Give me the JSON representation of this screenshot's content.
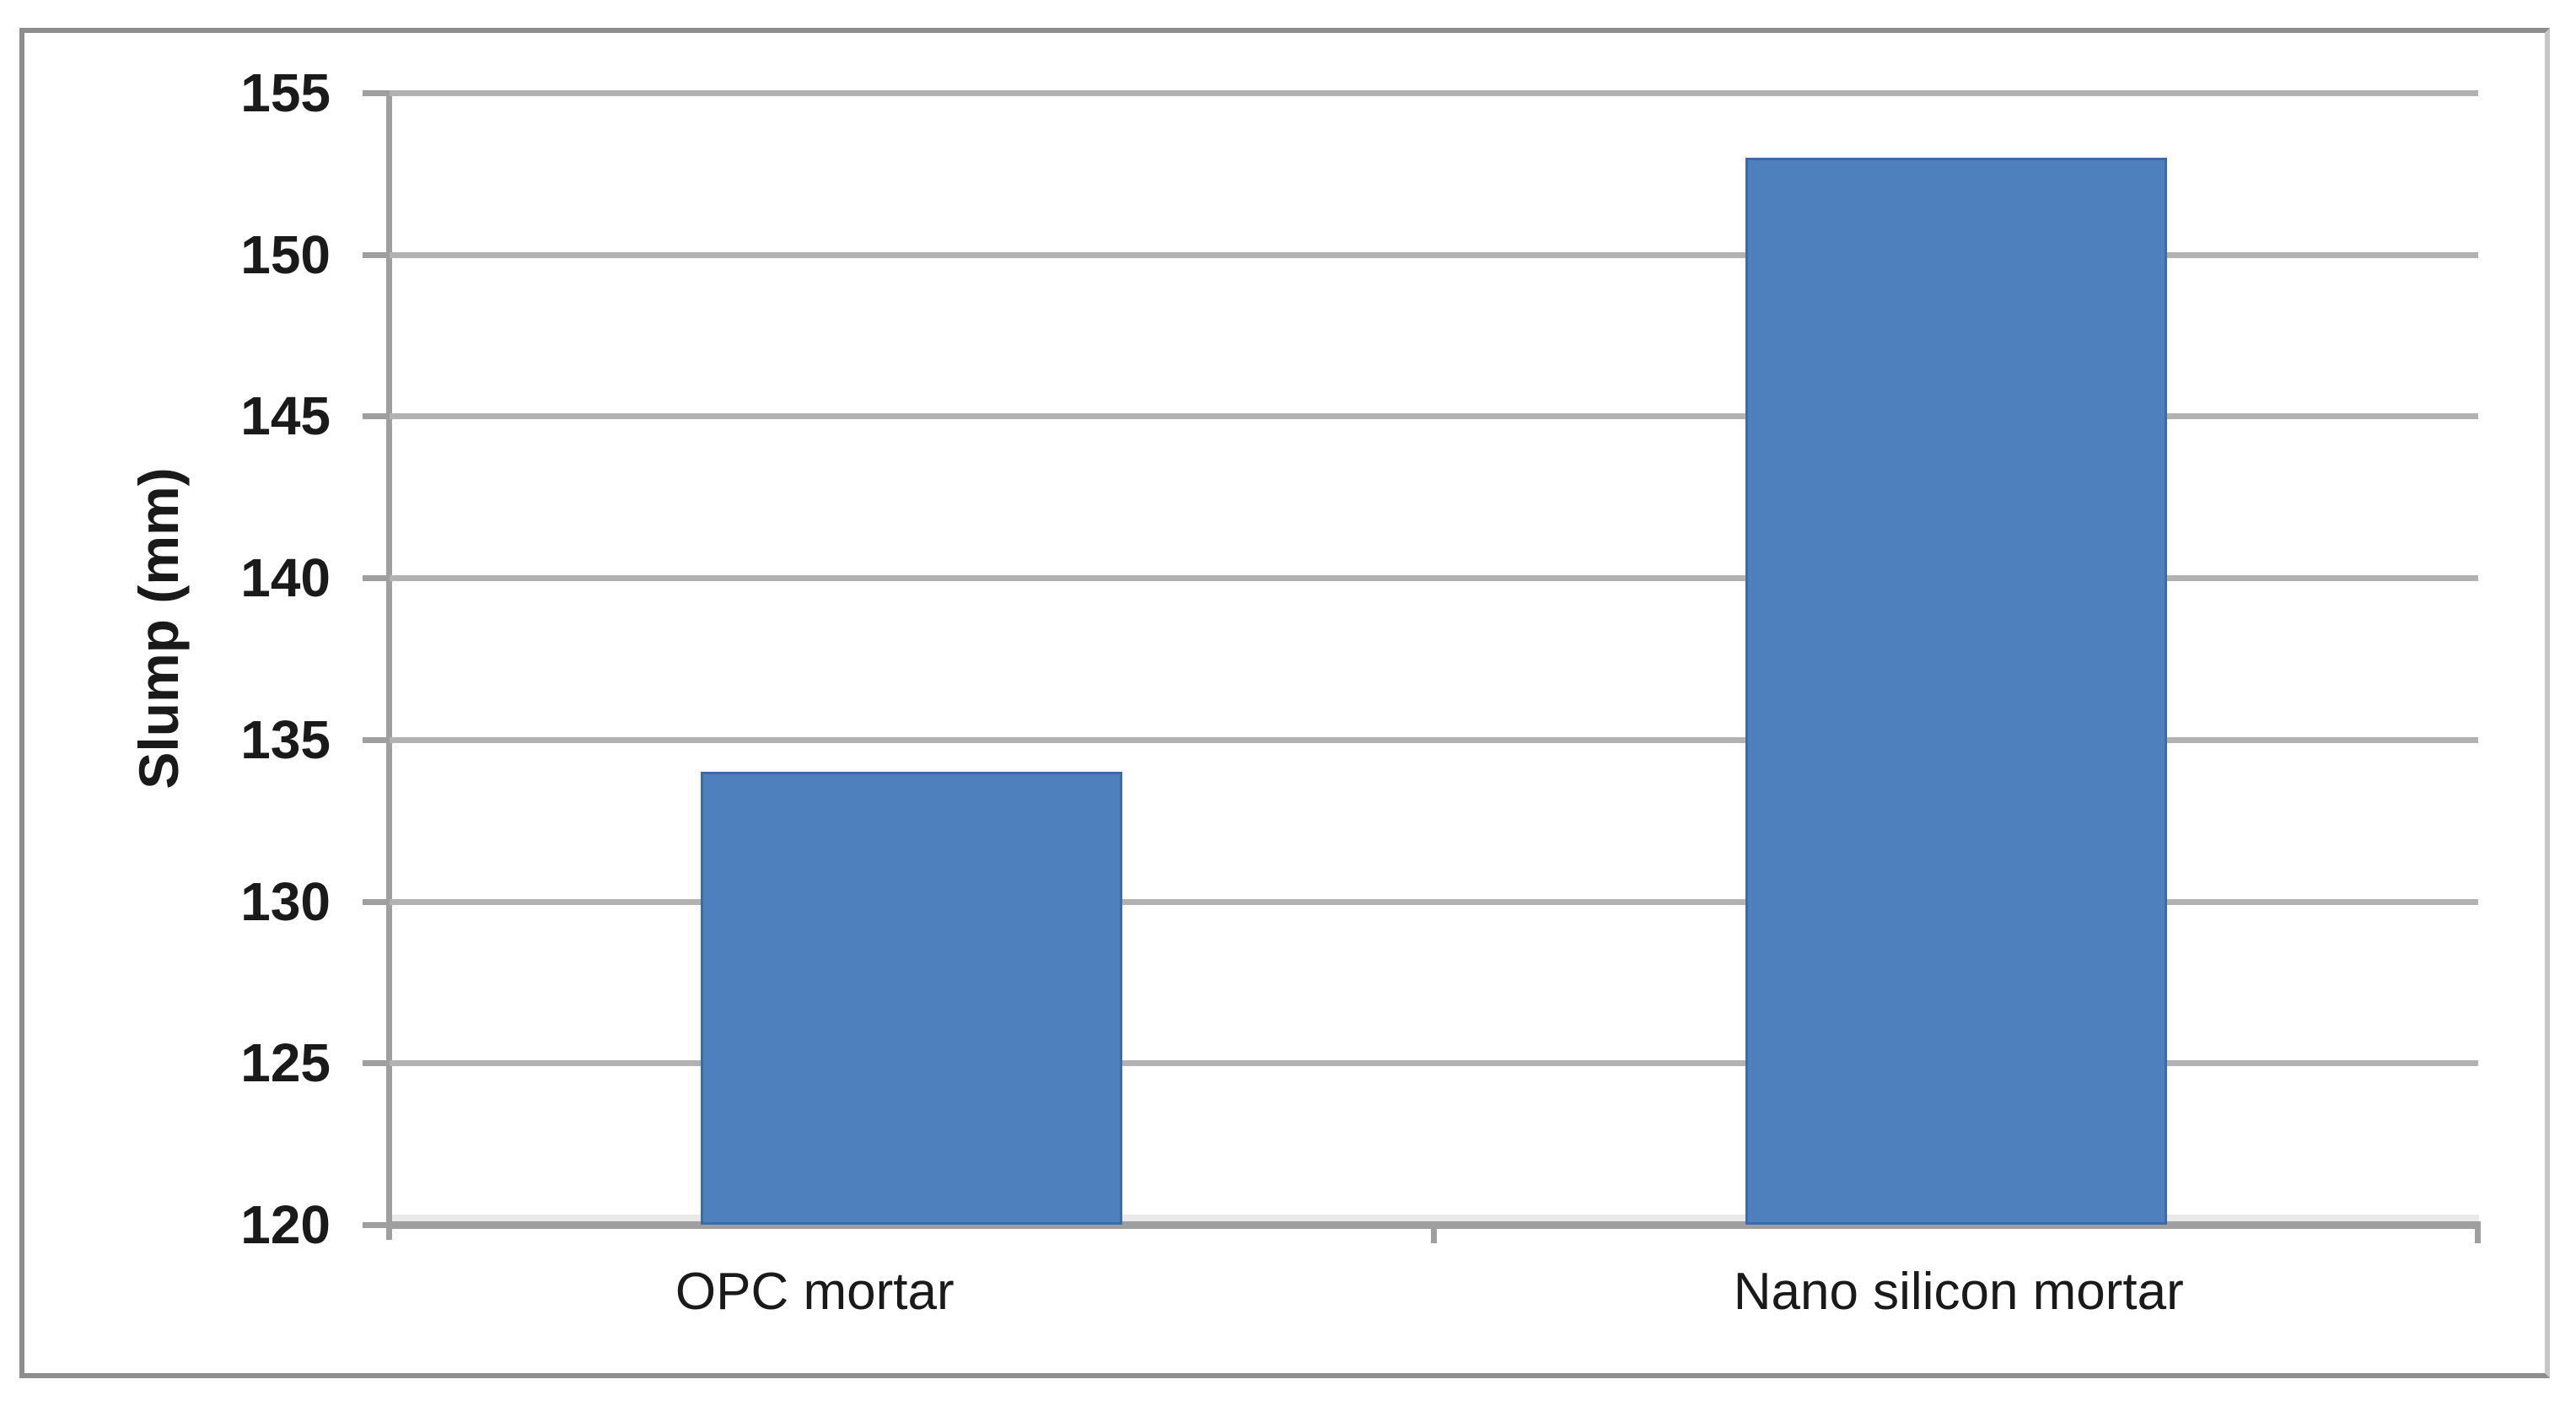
{
  "chart_data": {
    "type": "bar",
    "title": "",
    "categories": [
      "OPC mortar",
      "Nano silicon mortar"
    ],
    "values": [
      134,
      153
    ],
    "series": [
      {
        "name": "Slump",
        "values": [
          134,
          153
        ]
      }
    ],
    "xlabel": "",
    "ylabel": "Slump (mm)",
    "ylim": [
      120,
      155
    ],
    "ytick_interval": 5,
    "yticks": [
      155,
      150,
      145,
      140,
      135,
      130,
      125,
      120
    ],
    "grid": true,
    "legend": false,
    "colors": {
      "bar": "#4e80bd",
      "bar_border": "#3d6ba5",
      "gridline": "#b2b2b2",
      "axis_line": "#9f9f9f",
      "frame_border": "#8d8d8d",
      "text": "#1a1a1a",
      "background": "#ffffff"
    }
  }
}
